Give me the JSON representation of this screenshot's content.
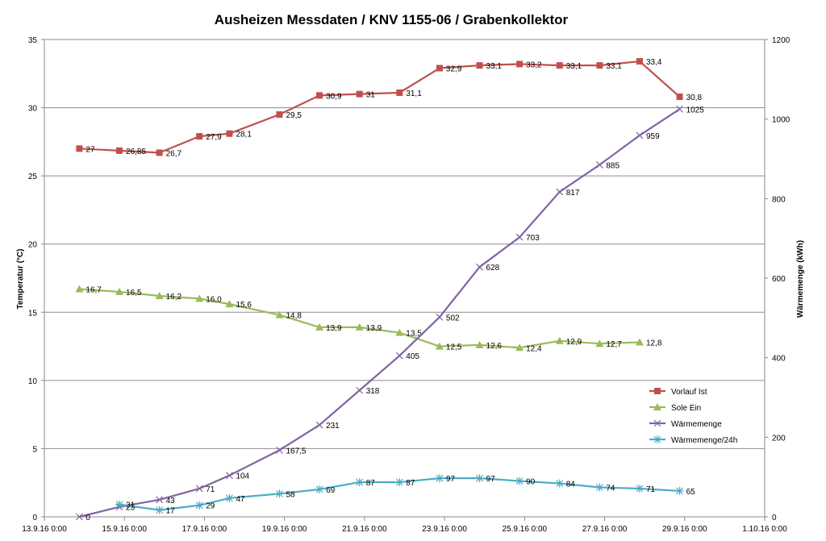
{
  "chart_data": {
    "type": "line",
    "title": "Ausheizen Messdaten / KNV 1155-06 / Grabenkollektor",
    "ylabel_left": "Temperatur (°C)",
    "ylabel_right": "Wärmemenge (kWh)",
    "xlim": [
      "13.9.16 0:00",
      "1.10.16 0:00"
    ],
    "ylim_left": [
      0,
      35
    ],
    "ylim_right": [
      0,
      1200
    ],
    "grid": "horizontal",
    "legend_position": "right",
    "x_tick_labels": [
      "13.9.16 0:00",
      "15.9.16 0:00",
      "17.9.16 0:00",
      "19.9.16 0:00",
      "21.9.16 0:00",
      "23.9.16 0:00",
      "25.9.16 0:00",
      "27.9.16 0:00",
      "29.9.16 0:00",
      "1.10.16 0:00"
    ],
    "y_left_tick_labels": [
      "0",
      "5",
      "10",
      "15",
      "20",
      "25",
      "30",
      "35"
    ],
    "y_right_tick_labels": [
      "0",
      "200",
      "400",
      "600",
      "800",
      "1000",
      "1200"
    ],
    "x": [
      "13.9.16 21:00",
      "14.9.16 21:00",
      "15.9.16 21:00",
      "16.9.16 21:00",
      "17.9.16 15:00",
      "18.9.16 21:00",
      "19.9.16 21:00",
      "20.9.16 21:00",
      "21.9.16 21:00",
      "22.9.16 21:00",
      "23.9.16 21:00",
      "24.9.16 21:00",
      "25.9.16 21:00",
      "26.9.16 21:00",
      "27.9.16 21:00",
      "28.9.16 21:00"
    ],
    "series": [
      {
        "name": "Vorlauf Ist",
        "axis": "left",
        "color": "#c0504d",
        "marker": "square",
        "values": [
          27,
          26.85,
          26.7,
          27.9,
          28.1,
          29.5,
          30.9,
          31,
          31.1,
          32.9,
          33.1,
          33.2,
          33.1,
          33.1,
          33.4,
          30.8
        ],
        "labels": [
          "27",
          "26,85",
          "26,7",
          "27,9",
          "28,1",
          "29,5",
          "30,9",
          "31",
          "31,1",
          "32,9",
          "33,1",
          "33,2",
          "33,1",
          "33,1",
          "33,4",
          "30,8"
        ]
      },
      {
        "name": "Sole Ein",
        "axis": "left",
        "color": "#9bbb59",
        "marker": "triangle",
        "values": [
          16.7,
          16.5,
          16.2,
          16.0,
          15.6,
          14.8,
          13.9,
          13.9,
          13.5,
          12.5,
          12.6,
          12.4,
          12.9,
          12.7,
          12.8,
          null
        ],
        "labels": [
          "16,7",
          "16,5",
          "16,2",
          "16,0",
          "15,6",
          "14,8",
          "13,9",
          "13,9",
          "13,5",
          "12,5",
          "12,6",
          "12,4",
          "12,9",
          "12,7",
          "12,8",
          ""
        ]
      },
      {
        "name": "Wärmemenge",
        "axis": "right",
        "color": "#8064a2",
        "marker": "x",
        "values": [
          0,
          25,
          43,
          71,
          104,
          167.5,
          231,
          318,
          405,
          502,
          628,
          703,
          817,
          885,
          959,
          1025
        ],
        "labels": [
          "0",
          "25",
          "43",
          "71",
          "104",
          "167,5",
          "231",
          "318",
          "405",
          "502",
          "628",
          "703",
          "817",
          "885",
          "959",
          "1025"
        ]
      },
      {
        "name": "Wärmemenge/24h",
        "axis": "right",
        "color": "#4bacc6",
        "marker": "star",
        "values": [
          null,
          31,
          17,
          29,
          47,
          58,
          69,
          87,
          87,
          97,
          97,
          90,
          84,
          74,
          71,
          65
        ],
        "labels": [
          "",
          "31",
          "17",
          "29",
          "47",
          "58",
          "69",
          "87",
          "87",
          "97",
          "97",
          "90",
          "84",
          "74",
          "71",
          "65"
        ]
      }
    ]
  }
}
